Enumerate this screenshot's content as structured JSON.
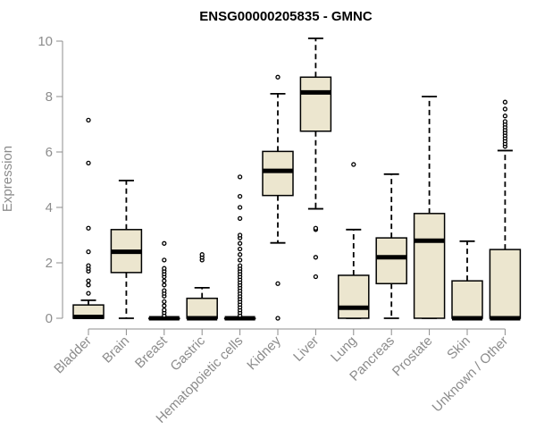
{
  "chart_data": {
    "type": "boxplot",
    "title": "ENSG00000205835 - GMNC",
    "ylabel": "Expression",
    "xlabel": "",
    "ylim": [
      0,
      10
    ],
    "yticks": [
      0,
      2,
      4,
      6,
      8,
      10
    ],
    "box_fill": "#ece6cf",
    "axis_color": "#8c8c8c",
    "grid": false,
    "categories": [
      "Bladder",
      "Brain",
      "Breast",
      "Gastric",
      "Hematopoietic cells",
      "Kidney",
      "Liver",
      "Lung",
      "Pancreas",
      "Prostate",
      "Skin",
      "Unknown / Other"
    ],
    "boxes": [
      {
        "category": "Bladder",
        "whisker_low": 0.0,
        "q1": 0.0,
        "median": 0.05,
        "q3": 0.48,
        "whisker_high": 0.65,
        "outliers": [
          0.9,
          1.2,
          1.35,
          1.7,
          1.8,
          1.9,
          2.4,
          3.25,
          5.6,
          7.15
        ]
      },
      {
        "category": "Brain",
        "whisker_low": 0.0,
        "q1": 1.65,
        "median": 2.4,
        "q3": 3.2,
        "whisker_high": 4.97,
        "outliers": []
      },
      {
        "category": "Breast",
        "whisker_low": 0.0,
        "q1": 0.0,
        "median": 0.0,
        "q3": 0.0,
        "whisker_high": 0.0,
        "outliers": [
          0.1,
          0.2,
          0.3,
          0.45,
          0.6,
          0.8,
          0.9,
          1.0,
          1.2,
          1.35,
          1.5,
          1.6,
          1.7,
          1.8,
          2.1,
          2.7
        ]
      },
      {
        "category": "Gastric",
        "whisker_low": 0.0,
        "q1": 0.0,
        "median": 0.0,
        "q3": 0.72,
        "whisker_high": 1.1,
        "outliers": [
          2.1,
          2.2,
          2.3
        ]
      },
      {
        "category": "Hematopoietic cells",
        "whisker_low": 0.0,
        "q1": 0.0,
        "median": 0.0,
        "q3": 0.0,
        "whisker_high": 0.0,
        "outliers": [
          0.1,
          0.2,
          0.3,
          0.4,
          0.5,
          0.6,
          0.7,
          0.8,
          0.9,
          1.0,
          1.1,
          1.2,
          1.3,
          1.4,
          1.5,
          1.6,
          1.7,
          1.8,
          1.9,
          2.1,
          2.3,
          2.5,
          2.7,
          2.9,
          3.0,
          3.6,
          4.0,
          4.4,
          5.1
        ]
      },
      {
        "category": "Kidney",
        "whisker_low": 2.72,
        "q1": 4.43,
        "median": 5.32,
        "q3": 6.02,
        "whisker_high": 8.1,
        "outliers": [
          0.0,
          1.25,
          8.7
        ]
      },
      {
        "category": "Liver",
        "whisker_low": 3.95,
        "q1": 6.75,
        "median": 8.15,
        "q3": 8.7,
        "whisker_high": 10.1,
        "outliers": [
          1.5,
          2.2,
          3.2,
          3.25
        ]
      },
      {
        "category": "Lung",
        "whisker_low": 0.0,
        "q1": 0.0,
        "median": 0.38,
        "q3": 1.55,
        "whisker_high": 3.2,
        "outliers": [
          5.55
        ]
      },
      {
        "category": "Pancreas",
        "whisker_low": 0.0,
        "q1": 1.25,
        "median": 2.2,
        "q3": 2.9,
        "whisker_high": 5.2,
        "outliers": []
      },
      {
        "category": "Prostate",
        "whisker_low": 0.0,
        "q1": 0.0,
        "median": 2.8,
        "q3": 3.78,
        "whisker_high": 8.0,
        "outliers": []
      },
      {
        "category": "Skin",
        "whisker_low": 0.0,
        "q1": 0.0,
        "median": 0.0,
        "q3": 1.35,
        "whisker_high": 2.78,
        "outliers": []
      },
      {
        "category": "Unknown / Other",
        "whisker_low": 0.0,
        "q1": 0.0,
        "median": 0.0,
        "q3": 2.48,
        "whisker_high": 6.05,
        "outliers": [
          6.2,
          6.3,
          6.4,
          6.5,
          6.6,
          6.7,
          6.8,
          6.9,
          7.0,
          7.1,
          7.3,
          7.55,
          7.8
        ]
      }
    ]
  }
}
